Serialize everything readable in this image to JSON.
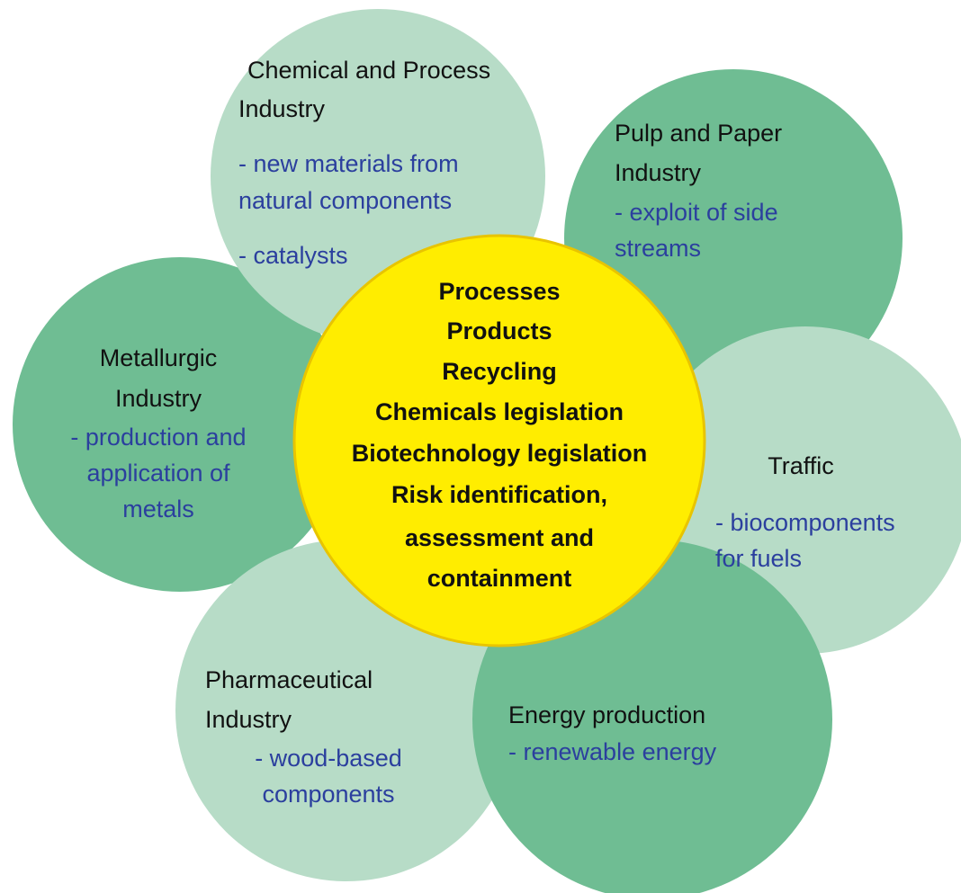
{
  "center": {
    "lines": [
      "Processes",
      "Products",
      "Recycling",
      "Chemicals legislation",
      "Biotechnology legislation",
      "Risk identification,",
      "assessment and",
      "containment"
    ]
  },
  "nodes": [
    {
      "title": [
        "Chemical and Process",
        "Industry"
      ],
      "details": [
        "- new materials from",
        "natural components",
        "- catalysts"
      ]
    },
    {
      "title": [
        "Pulp and Paper",
        "Industry"
      ],
      "details": [
        "- exploit of side",
        "streams"
      ]
    },
    {
      "title": [
        "Metallurgic",
        "Industry"
      ],
      "details": [
        "- production and",
        "application of",
        "metals"
      ]
    },
    {
      "title": [
        "Traffic"
      ],
      "details": [
        "- biocomponents",
        "for fuels"
      ]
    },
    {
      "title": [
        "Pharmaceutical",
        "Industry"
      ],
      "details": [
        "- wood-based",
        "components"
      ]
    },
    {
      "title": [
        "Energy production"
      ],
      "details": [
        "- renewable energy"
      ]
    }
  ]
}
